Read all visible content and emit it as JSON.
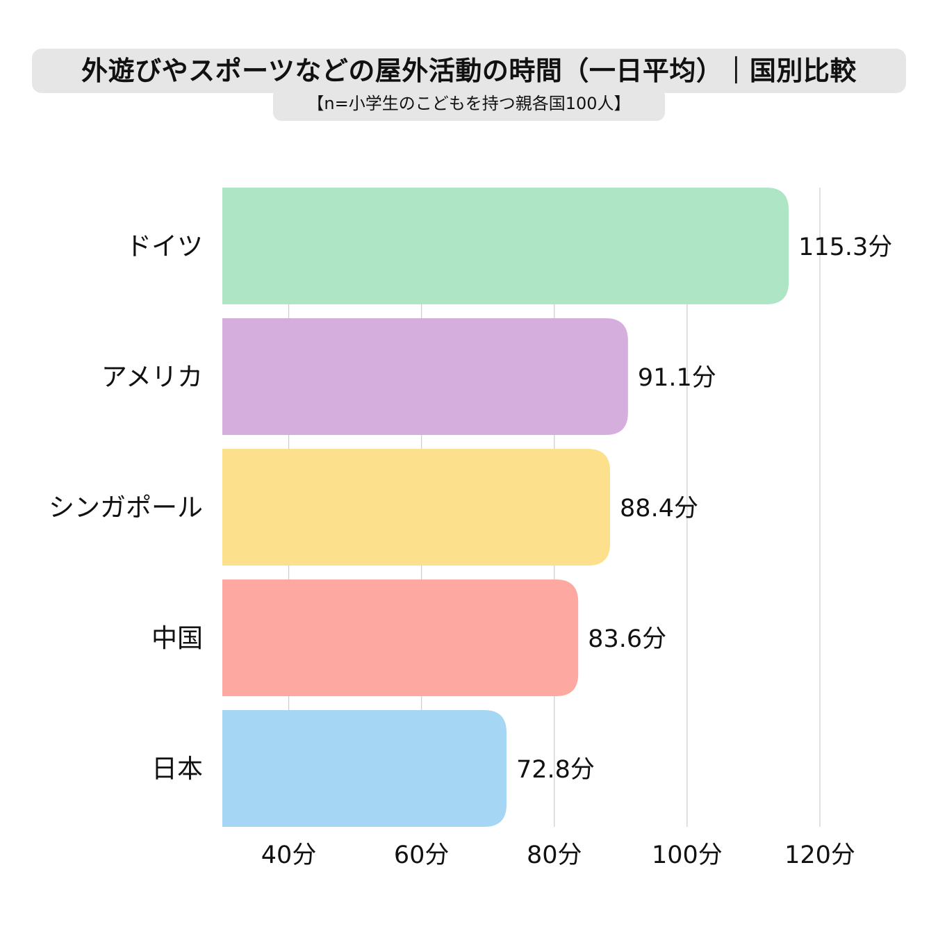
{
  "header": {
    "title": "外遊びやスポーツなどの屋外活動の時間（一日平均）｜国別比較",
    "subtitle": "【n=小学生のこどもを持つ親各国100人】"
  },
  "chart_data": {
    "type": "bar",
    "orientation": "horizontal",
    "title": "外遊びやスポーツなどの屋外活動の時間（一日平均）｜国別比較",
    "subtitle": "【n=小学生のこどもを持つ親各国100人】",
    "categories": [
      "ドイツ",
      "アメリカ",
      "シンガポール",
      "中国",
      "日本"
    ],
    "values": [
      115.3,
      91.1,
      88.4,
      83.6,
      72.8
    ],
    "value_labels": [
      "115.3分",
      "91.1分",
      "88.4分",
      "83.6分",
      "72.8分"
    ],
    "colors": [
      "#aee5c5",
      "#d6aedd",
      "#fde08b",
      "#fda9a1",
      "#a5d6f4"
    ],
    "xlim": [
      30,
      120
    ],
    "x_ticks": [
      40,
      60,
      80,
      100,
      120
    ],
    "x_tick_labels": [
      "40分",
      "60分",
      "80分",
      "100分",
      "120分"
    ],
    "grid": true,
    "legend": "none"
  }
}
